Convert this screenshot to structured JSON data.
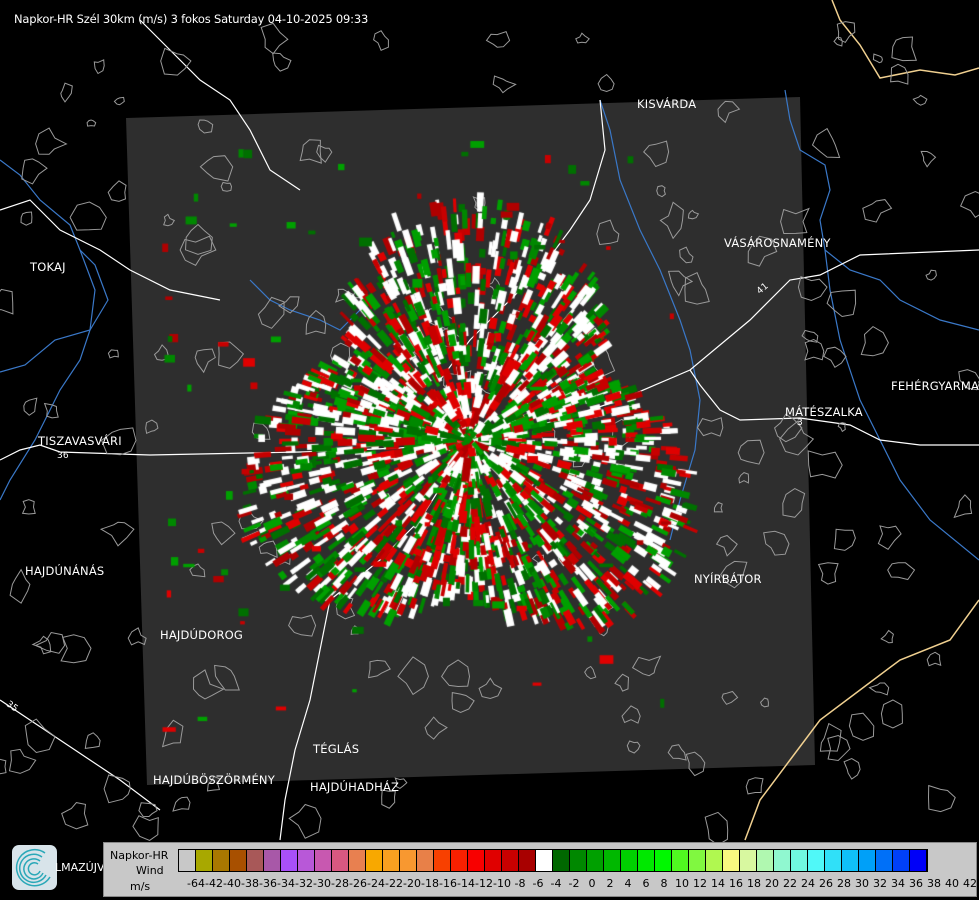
{
  "title": "Napkor-HR Szél 30km (m/s) 3 fokos Saturday 04-10-2025 09:33",
  "cities": [
    {
      "name": "KISVÁRDA"
    },
    {
      "name": "VÁSÁROSNAMÉNY"
    },
    {
      "name": "TOKAJ"
    },
    {
      "name": "FEHÉRGYARMAT"
    },
    {
      "name": "MÁTÉSZALKA"
    },
    {
      "name": "TISZAVASVÁRI"
    },
    {
      "name": "HAJDÚNÁNÁS"
    },
    {
      "name": "NYÍRBÁTOR"
    },
    {
      "name": "HAJDÚDOROG"
    },
    {
      "name": "TÉGLÁS"
    },
    {
      "name": "HAJDÚBÖSZÖRMÉNY"
    },
    {
      "name": "HAJDÚHADHÁZ"
    }
  ],
  "road_numbers": [
    "36",
    "35",
    "41",
    "3"
  ],
  "logo_partial_text": "LMAZÚJVÁR",
  "legend": {
    "source": "Napkor-HR",
    "quantity": "Wind",
    "unit": "m/s",
    "labels": [
      "-64",
      "-42",
      "-40",
      "-38",
      "-36",
      "-34",
      "-32",
      "-30",
      "-28",
      "-26",
      "-24",
      "-22",
      "-20",
      "-18",
      "-16",
      "-14",
      "-12",
      "-10",
      "-8",
      "-6",
      "-4",
      "-2",
      "0",
      "2",
      "4",
      "6",
      "8",
      "10",
      "12",
      "14",
      "16",
      "18",
      "20",
      "22",
      "24",
      "26",
      "28",
      "30",
      "32",
      "34",
      "36",
      "38",
      "40",
      "42"
    ],
    "colors": [
      "#c8c8c8",
      "#a8a800",
      "#a87800",
      "#a85000",
      "#a85858",
      "#a858a8",
      "#a850f8",
      "#b858d8",
      "#c858b0",
      "#d85880",
      "#e88050",
      "#f8a800",
      "#f8a020",
      "#f89830",
      "#e88048",
      "#f84000",
      "#f82000",
      "#f80000",
      "#e00000",
      "#c80000",
      "#a80000",
      "#ffffff",
      "#006800",
      "#008800",
      "#00a000",
      "#00b800",
      "#00d000",
      "#00e800",
      "#00f800",
      "#50f820",
      "#80f840",
      "#b0f850",
      "#f8f880",
      "#d8f8a0",
      "#b0f8b0",
      "#90f8d0",
      "#70f8e0",
      "#50f8f8",
      "#30e0f8",
      "#10c0f8",
      "#00a0f8",
      "#0070f8",
      "#0040f8",
      "#0000f8"
    ]
  },
  "colors": {
    "coverage": "#2e2e2e",
    "river": "#3a78c8",
    "road": "#ffffff",
    "settlement": "#9a9a9a",
    "border": "#f0d090"
  }
}
